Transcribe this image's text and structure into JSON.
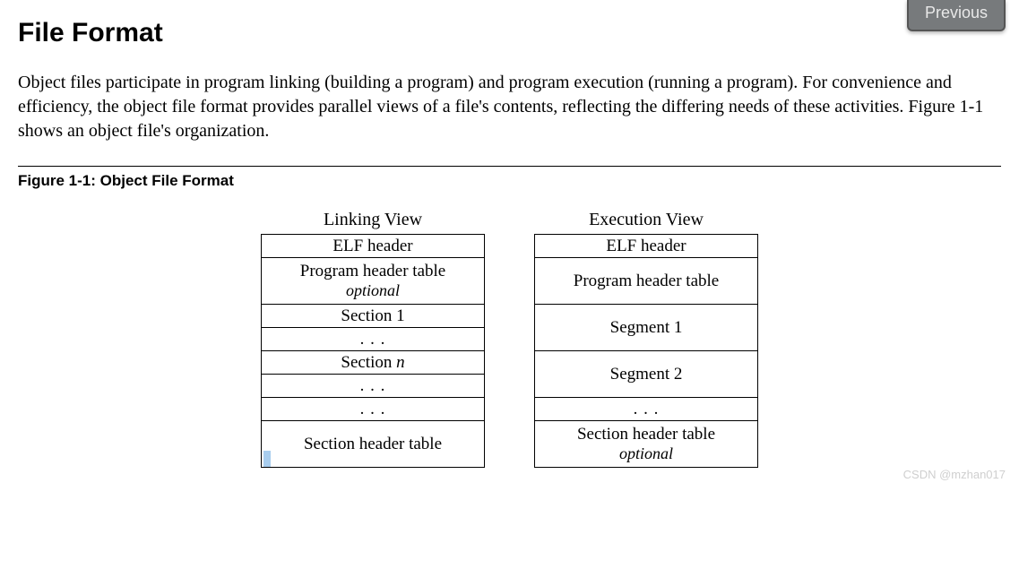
{
  "button_previous": "Previous",
  "title": "File Format",
  "paragraph": "Object files participate in program linking (building a program) and program execution (running a pro­gram).  For convenience and efficiency, the object file format provides parallel views of a file's contents, reflecting the differing needs of these activities.  Figure 1-1 shows an object file's organization.",
  "figure_caption": "Figure 1-1:  Object File Format",
  "linking": {
    "header": "Linking View",
    "rows": {
      "elf": "ELF header",
      "pht": "Program header table",
      "pht_opt": "optional",
      "sec1": "Section 1",
      "dots1": ". . .",
      "secn_pre": "Section ",
      "secn_var": "n",
      "dots2": ". . .",
      "dots3": ". . .",
      "sht": "Section header table"
    }
  },
  "execution": {
    "header": "Execution View",
    "rows": {
      "elf": "ELF header",
      "pht": "Program header table",
      "seg1": "Segment 1",
      "seg2": "Segment 2",
      "dots": ". . .",
      "sht": "Section header table",
      "sht_opt": "optional"
    }
  },
  "watermark": "CSDN @mzhan017"
}
